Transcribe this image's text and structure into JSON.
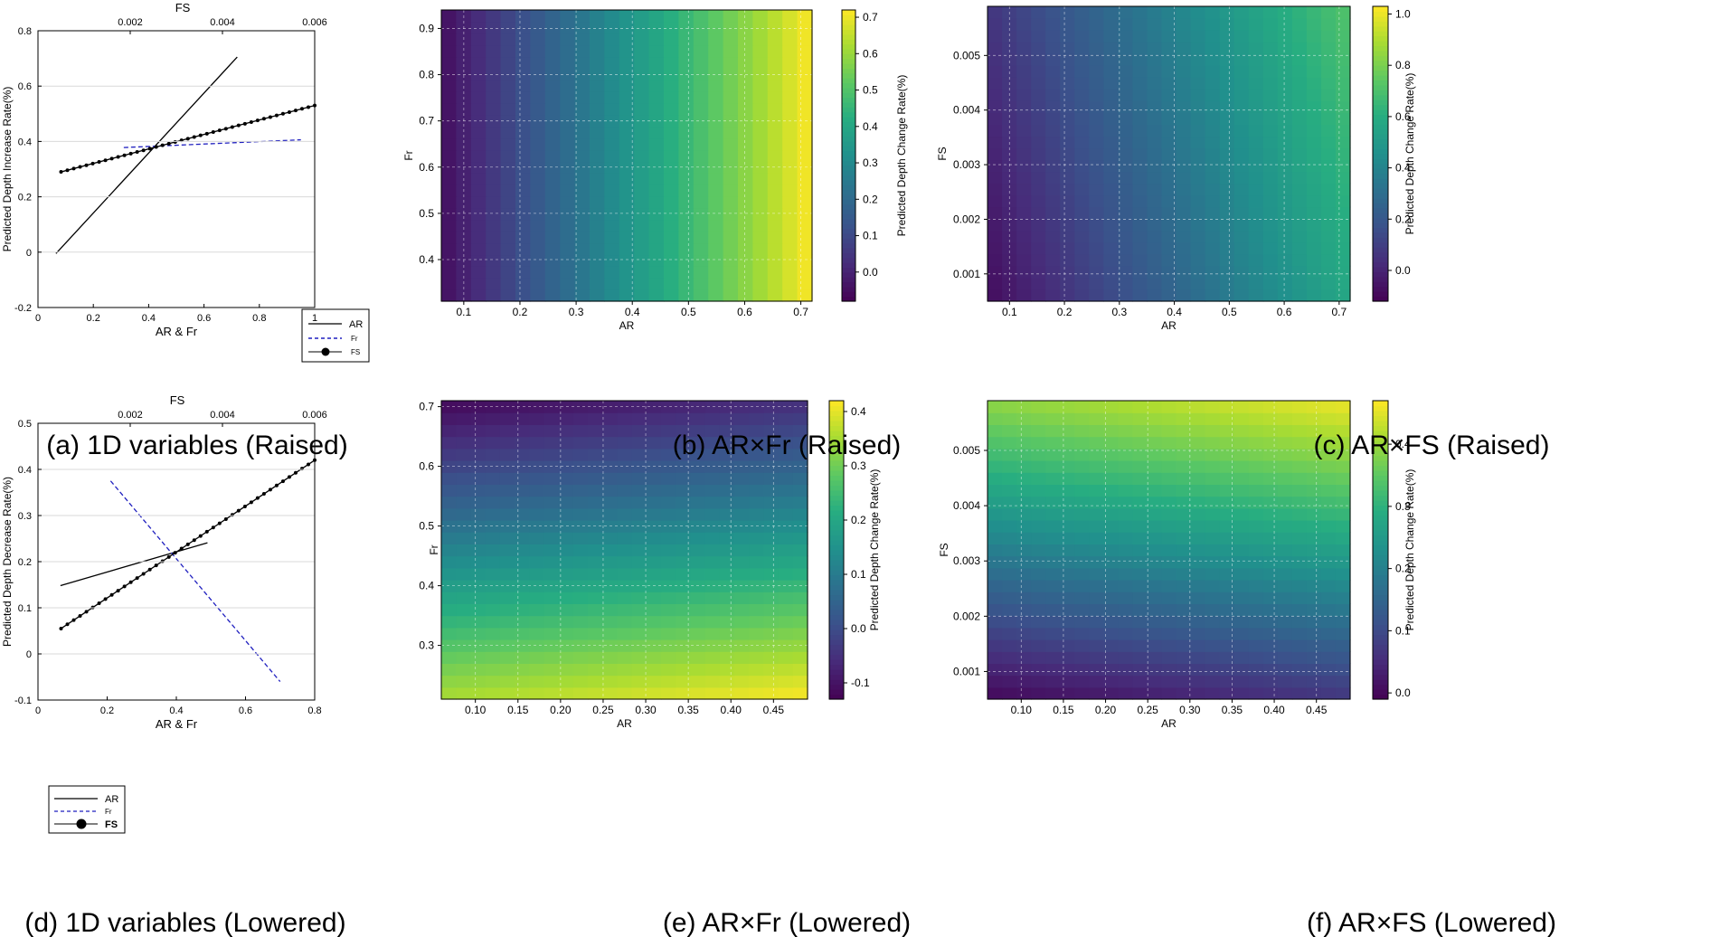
{
  "figure": {
    "captions": [
      "(a) 1D variables (Raised)",
      "(b) AR×Fr (Raised)",
      "(c) AR×FS (Raised)",
      "(d) 1D variables (Lowered)",
      "(e) AR×Fr (Lowered)",
      "(f) AR×FS (Lowered)"
    ]
  },
  "chart_data": [
    {
      "id": "a",
      "type": "line",
      "title": "",
      "xlabel": "AR & Fr",
      "x2label": "FS",
      "ylabel": "Predicted Depth Increase Rate(%)",
      "xlim": [
        0,
        1
      ],
      "x2lim": [
        0,
        0.006
      ],
      "ylim": [
        -0.2,
        0.8
      ],
      "xticks": [
        "0",
        "0.2",
        "0.4",
        "0.6",
        "0.8",
        "1"
      ],
      "x2ticks": [
        "0.002",
        "0.004",
        "0.006"
      ],
      "yticks": [
        "-0.2",
        "0",
        "0.2",
        "0.4",
        "0.6",
        "0.8"
      ],
      "legend": {
        "position": "bottom-right",
        "entries": [
          "AR",
          "Fr",
          "FS"
        ]
      },
      "series": [
        {
          "name": "AR",
          "axis": "x",
          "color": "#000000",
          "x": [
            0.065,
            0.72
          ],
          "y": [
            -0.005,
            0.705
          ]
        },
        {
          "name": "Fr",
          "axis": "x",
          "color": "#1f1fbf",
          "x": [
            0.31,
            0.95
          ],
          "y": [
            0.378,
            0.406
          ]
        },
        {
          "name": "FS",
          "axis": "x2",
          "color": "#000000",
          "x": [
            0.0005,
            0.006
          ],
          "y": [
            0.29,
            0.53
          ]
        }
      ]
    },
    {
      "id": "b",
      "type": "heatmap",
      "xlabel": "AR",
      "ylabel": "Fr",
      "colorbar_label": "Predicted Depth Change Rate(%)",
      "xlim": [
        0.06,
        0.72
      ],
      "ylim": [
        0.31,
        0.94
      ],
      "xticks": [
        "0.1",
        "0.2",
        "0.3",
        "0.4",
        "0.5",
        "0.6",
        "0.7"
      ],
      "yticks": [
        "0.4",
        "0.5",
        "0.6",
        "0.7",
        "0.8",
        "0.9"
      ],
      "clim": [
        -0.08,
        0.72
      ],
      "cticks": [
        "0.0",
        "0.1",
        "0.2",
        "0.3",
        "0.4",
        "0.5",
        "0.6",
        "0.7"
      ],
      "grid": {
        "nx": 25,
        "ny": 25
      },
      "surface": {
        "min_value": -0.05,
        "max_value": 0.72,
        "x_dependence": 1.0,
        "y_dependence": 0.0
      }
    },
    {
      "id": "c",
      "type": "heatmap",
      "xlabel": "AR",
      "ylabel": "FS",
      "colorbar_label": "Predicted Depth Change Rate(%)",
      "xlim": [
        0.06,
        0.72
      ],
      "ylim": [
        0.0005,
        0.0059
      ],
      "xticks": [
        "0.1",
        "0.2",
        "0.3",
        "0.4",
        "0.5",
        "0.6",
        "0.7"
      ],
      "yticks": [
        "0.001",
        "0.002",
        "0.003",
        "0.004",
        "0.005"
      ],
      "clim": [
        -0.12,
        1.03
      ],
      "cticks": [
        "0.0",
        "0.2",
        "0.4",
        "0.6",
        "0.8",
        "1.0"
      ],
      "grid": {
        "nx": 25,
        "ny": 25
      },
      "surface": {
        "min_value": -0.08,
        "max_value": 0.72,
        "x_dependence": 0.82,
        "y_dependence": 0.18
      }
    },
    {
      "id": "d",
      "type": "line",
      "title": "",
      "xlabel": "AR & Fr",
      "x2label": "FS",
      "ylabel": "Predicted Depth Decrease Rate(%)",
      "xlim": [
        0,
        0.8
      ],
      "x2lim": [
        0,
        0.006
      ],
      "ylim": [
        -0.1,
        0.5
      ],
      "xticks": [
        "0",
        "0.2",
        "0.4",
        "0.6",
        "0.8"
      ],
      "x2ticks": [
        "0.002",
        "0.004",
        "0.006"
      ],
      "yticks": [
        "-0.1",
        "0",
        "0.1",
        "0.2",
        "0.3",
        "0.4",
        "0.5"
      ],
      "legend": {
        "position": "bottom-left",
        "entries": [
          "AR",
          "Fr",
          "FS"
        ]
      },
      "series": [
        {
          "name": "AR",
          "axis": "x",
          "color": "#000000",
          "x": [
            0.065,
            0.49
          ],
          "y": [
            0.148,
            0.241
          ]
        },
        {
          "name": "Fr",
          "axis": "x",
          "color": "#1f1fbf",
          "x": [
            0.21,
            0.7
          ],
          "y": [
            0.375,
            -0.06
          ]
        },
        {
          "name": "FS",
          "axis": "x2",
          "color": "#000000",
          "x": [
            0.0005,
            0.006
          ],
          "y": [
            0.055,
            0.42
          ]
        }
      ]
    },
    {
      "id": "e",
      "type": "heatmap",
      "xlabel": "AR",
      "ylabel": "Fr",
      "colorbar_label": "Predicted Depth Change Rate(%)",
      "xlim": [
        0.06,
        0.49
      ],
      "ylim": [
        0.21,
        0.71
      ],
      "xticks": [
        "0.10",
        "0.15",
        "0.20",
        "0.25",
        "0.30",
        "0.35",
        "0.40",
        "0.45"
      ],
      "yticks": [
        "0.3",
        "0.4",
        "0.5",
        "0.6",
        "0.7"
      ],
      "clim": [
        -0.13,
        0.42
      ],
      "cticks": [
        "-0.1",
        "0.0",
        "0.1",
        "0.2",
        "0.3",
        "0.4"
      ],
      "grid": {
        "nx": 25,
        "ny": 25
      },
      "surface": {
        "min_value": -0.12,
        "max_value": 0.42,
        "x_dependence": 0.12,
        "y_dependence": -0.88
      }
    },
    {
      "id": "f",
      "type": "heatmap",
      "xlabel": "AR",
      "ylabel": "FS",
      "colorbar_label": "Predicted Depth Change Rate(%)",
      "xlim": [
        0.06,
        0.49
      ],
      "ylim": [
        0.0005,
        0.0059
      ],
      "xticks": [
        "0.10",
        "0.15",
        "0.20",
        "0.25",
        "0.30",
        "0.35",
        "0.40",
        "0.45"
      ],
      "yticks": [
        "0.001",
        "0.002",
        "0.003",
        "0.004",
        "0.005"
      ],
      "clim": [
        -0.01,
        0.47
      ],
      "cticks": [
        "0.0",
        "0.1",
        "0.2",
        "0.3",
        "0.4"
      ],
      "grid": {
        "nx": 25,
        "ny": 25
      },
      "surface": {
        "min_value": 0.0,
        "max_value": 0.46,
        "x_dependence": 0.15,
        "y_dependence": 0.85
      }
    }
  ]
}
